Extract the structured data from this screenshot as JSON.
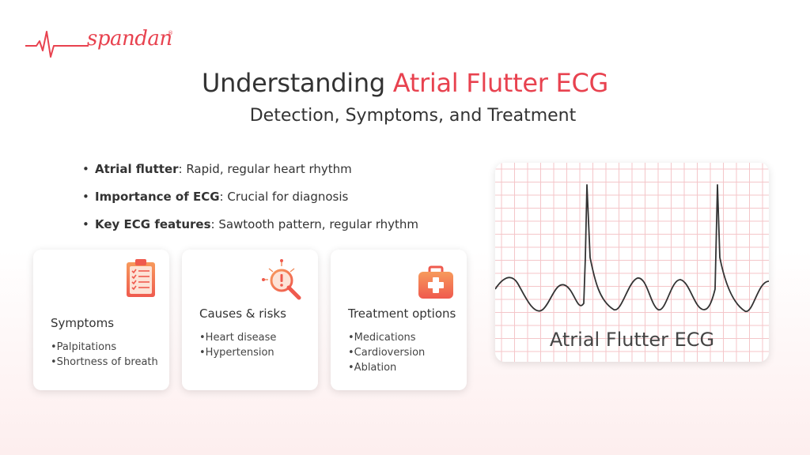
{
  "brand": {
    "name": "spandan",
    "reg": "®",
    "color": "#e8424f"
  },
  "title": {
    "prefix": "Understanding ",
    "accent": "Atrial Flutter ECG"
  },
  "subtitle": "Detection, Symptoms, and Treatment",
  "bullets": [
    {
      "bold": "Atrial flutter",
      "rest": ": Rapid, regular heart rhythm"
    },
    {
      "bold": "Importance of ECG",
      "rest": ": Crucial for diagnosis"
    },
    {
      "bold": "Key ECG features",
      "rest": ": Sawtooth pattern, regular rhythm"
    }
  ],
  "cards": [
    {
      "title": "Symptoms",
      "icon": "clipboard-checklist-icon",
      "items": [
        "Palpitations",
        "Shortness of breath"
      ]
    },
    {
      "title": "Causes & risks",
      "icon": "magnifier-alert-icon",
      "items": [
        "Heart disease",
        "Hypertension"
      ]
    },
    {
      "title": "Treatment options",
      "icon": "first-aid-kit-icon",
      "items": [
        "Medications",
        "Cardioversion",
        "Ablation"
      ]
    }
  ],
  "ecg": {
    "label": "Atrial Flutter ECG",
    "grid_color": "#f4c6c9",
    "line_color": "#333333"
  },
  "bullet_char": "•"
}
